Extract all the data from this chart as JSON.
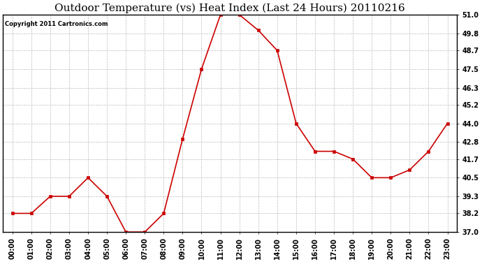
{
  "title": "Outdoor Temperature (vs) Heat Index (Last 24 Hours) 20110216",
  "copyright": "Copyright 2011 Cartronics.com",
  "x_labels": [
    "00:00",
    "01:00",
    "02:00",
    "03:00",
    "04:00",
    "05:00",
    "06:00",
    "07:00",
    "08:00",
    "09:00",
    "10:00",
    "11:00",
    "12:00",
    "13:00",
    "14:00",
    "15:00",
    "16:00",
    "17:00",
    "18:00",
    "19:00",
    "20:00",
    "21:00",
    "22:00",
    "23:00"
  ],
  "y_values": [
    38.2,
    38.2,
    39.3,
    39.3,
    40.5,
    39.3,
    37.0,
    37.0,
    38.2,
    43.0,
    47.5,
    51.0,
    51.0,
    50.0,
    48.7,
    44.0,
    42.2,
    42.2,
    41.7,
    40.5,
    40.5,
    41.0,
    42.2,
    44.0
  ],
  "line_color": "#cc0000",
  "marker": "s",
  "marker_size": 3,
  "bg_color": "#ffffff",
  "grid_color": "#bbbbbb",
  "ylim": [
    37.0,
    51.0
  ],
  "yticks": [
    37.0,
    38.2,
    39.3,
    40.5,
    41.7,
    42.8,
    44.0,
    45.2,
    46.3,
    47.5,
    48.7,
    49.8,
    51.0
  ],
  "title_fontsize": 11,
  "copyright_fontsize": 6,
  "tick_fontsize": 7,
  "ytick_fontsize": 7
}
